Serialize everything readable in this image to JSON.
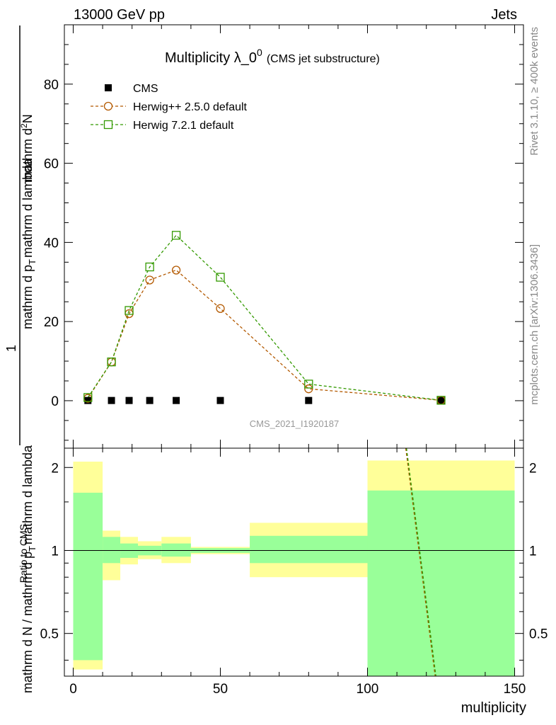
{
  "header": {
    "left": "13000 GeV pp",
    "right": "Jets"
  },
  "side_labels": {
    "rivet": "Rivet 3.1.10, ≥ 400k events",
    "mcplots": "mcplots.cern.ch [arXiv:1306.3436]"
  },
  "colors": {
    "herwigpp": "#b35900",
    "herwig7": "#339900",
    "band_outer": "#ffff99",
    "band_inner": "#99ff99",
    "data": "#000000"
  },
  "chart_data": [
    {
      "type": "scatter",
      "title": "Multiplicity λ_0",
      "title_sup": "0",
      "title_suffix": "(CMS jet substructure)",
      "analysis_label": "CMS_2021_I1920187",
      "ylabel": {
        "numerator": "1",
        "den_left": "mathrm d N / mathrm d p",
        "den_sub": "T",
        "den_right": "mathrm d lambda",
        "num_left": "mathrm d",
        "num_sup": "2",
        "num_right": "N",
        "num_mid_left": "mathrm d p",
        "num_mid_sub": "T",
        "num_mid_right": "mathrm d lambda"
      },
      "xlim": [
        -3,
        153
      ],
      "ylim": [
        -12,
        95
      ],
      "yticks": [
        0,
        20,
        40,
        60,
        80
      ],
      "yticklabels": [
        "0",
        "20",
        "40",
        "60",
        "80"
      ],
      "legend": [
        {
          "name": "CMS",
          "marker": "filled-square"
        },
        {
          "name": "Herwig++ 2.5.0 default",
          "marker": "open-circle"
        },
        {
          "name": "Herwig 7.2.1 default",
          "marker": "open-square"
        }
      ],
      "series": [
        {
          "name": "CMS",
          "x": [
            5,
            13,
            19,
            26,
            35,
            50,
            80,
            125
          ],
          "values": [
            0.05,
            0.05,
            0.05,
            0.05,
            0.05,
            0.05,
            0.05,
            0.05
          ]
        },
        {
          "name": "Herwig++ 2.5.0 default",
          "x": [
            5,
            13,
            19,
            26,
            35,
            50,
            80,
            125
          ],
          "values": [
            0.6,
            9.8,
            22.0,
            30.5,
            33.0,
            23.3,
            3.0,
            0.1
          ]
        },
        {
          "name": "Herwig 7.2.1 default",
          "x": [
            5,
            13,
            19,
            26,
            35,
            50,
            80,
            125
          ],
          "values": [
            0.8,
            9.8,
            22.8,
            33.8,
            41.8,
            31.2,
            4.2,
            0.1
          ]
        }
      ]
    },
    {
      "type": "area",
      "ylabel": "Ratio to CMS",
      "xlabel": "multiplicity",
      "xlim": [
        -3,
        153
      ],
      "ylim": [
        0.35,
        2.35
      ],
      "yscale": "log",
      "xticks": [
        0,
        50,
        100,
        150
      ],
      "xticklabels": [
        "0",
        "50",
        "100",
        "150"
      ],
      "yticks": [
        0.5,
        1,
        2
      ],
      "yticklabels": [
        "0.5",
        "1",
        "2"
      ],
      "bins": [
        {
          "lo": 0,
          "hi": 10,
          "outer": [
            0.37,
            2.1
          ],
          "inner": [
            0.4,
            1.62
          ]
        },
        {
          "lo": 10,
          "hi": 16,
          "outer": [
            0.78,
            1.18
          ],
          "inner": [
            0.9,
            1.12
          ]
        },
        {
          "lo": 16,
          "hi": 22,
          "outer": [
            0.89,
            1.12
          ],
          "inner": [
            0.94,
            1.06
          ]
        },
        {
          "lo": 22,
          "hi": 30,
          "outer": [
            0.93,
            1.08
          ],
          "inner": [
            0.96,
            1.04
          ]
        },
        {
          "lo": 30,
          "hi": 40,
          "outer": [
            0.9,
            1.12
          ],
          "inner": [
            0.95,
            1.06
          ]
        },
        {
          "lo": 40,
          "hi": 60,
          "outer": [
            0.97,
            1.03
          ],
          "inner": [
            0.98,
            1.02
          ]
        },
        {
          "lo": 60,
          "hi": 100,
          "outer": [
            0.8,
            1.26
          ],
          "inner": [
            0.9,
            1.13
          ]
        },
        {
          "lo": 100,
          "hi": 150,
          "outer": [
            0.35,
            2.12
          ],
          "inner": [
            0.35,
            1.65
          ]
        }
      ],
      "ratio_line": {
        "x": [
          113,
          123
        ],
        "values": [
          2.35,
          0.35
        ]
      }
    }
  ]
}
